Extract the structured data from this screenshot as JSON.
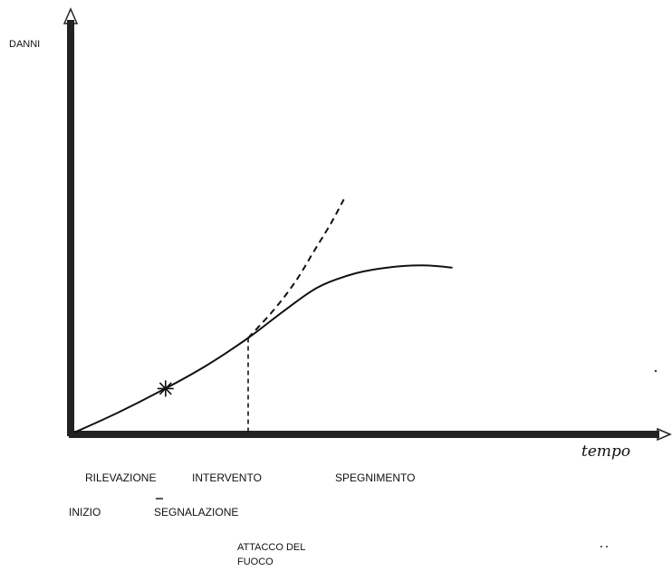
{
  "chart_data": {
    "type": "line",
    "title": "",
    "ylabel": "DANNI",
    "xlabel": "tempo",
    "xlim": [
      0,
      10
    ],
    "ylim": [
      0,
      10
    ],
    "grid": false,
    "series": [
      {
        "style": "solid",
        "x": [
          0,
          1.0,
          2.0,
          3.0,
          4.0,
          4.8,
          5.6,
          6.4,
          7.2,
          8.0,
          8.7
        ],
        "y": [
          0,
          0.9,
          1.9,
          3.0,
          4.3,
          5.5,
          6.6,
          7.2,
          7.5,
          7.6,
          7.5
        ]
      },
      {
        "style": "dashed",
        "x": [
          4.0,
          4.6,
          5.1,
          5.5,
          5.9,
          6.2
        ],
        "y": [
          4.3,
          5.6,
          6.9,
          8.2,
          9.5,
          10.6
        ]
      }
    ],
    "markers": [
      {
        "x": 2.1,
        "y": 2.0,
        "symbol": "*"
      }
    ],
    "reference_lines": [
      {
        "orientation": "vertical",
        "x": 4.0,
        "y_to": 4.3,
        "style": "dashed"
      }
    ],
    "annotations": [
      {
        "text": "RILEVAZIONE",
        "key": "rilevazione"
      },
      {
        "text": "INTERVENTO",
        "key": "intervento"
      },
      {
        "text": "SPEGNIMENTO",
        "key": "spegnimento"
      },
      {
        "text": "INIZIO",
        "key": "inizio"
      },
      {
        "text": "SEGNALAZIONE",
        "key": "segnalazione"
      },
      {
        "text": "ATTACCO DEL",
        "key": "attacco1"
      },
      {
        "text": "FUOCO",
        "key": "attacco2"
      }
    ]
  }
}
